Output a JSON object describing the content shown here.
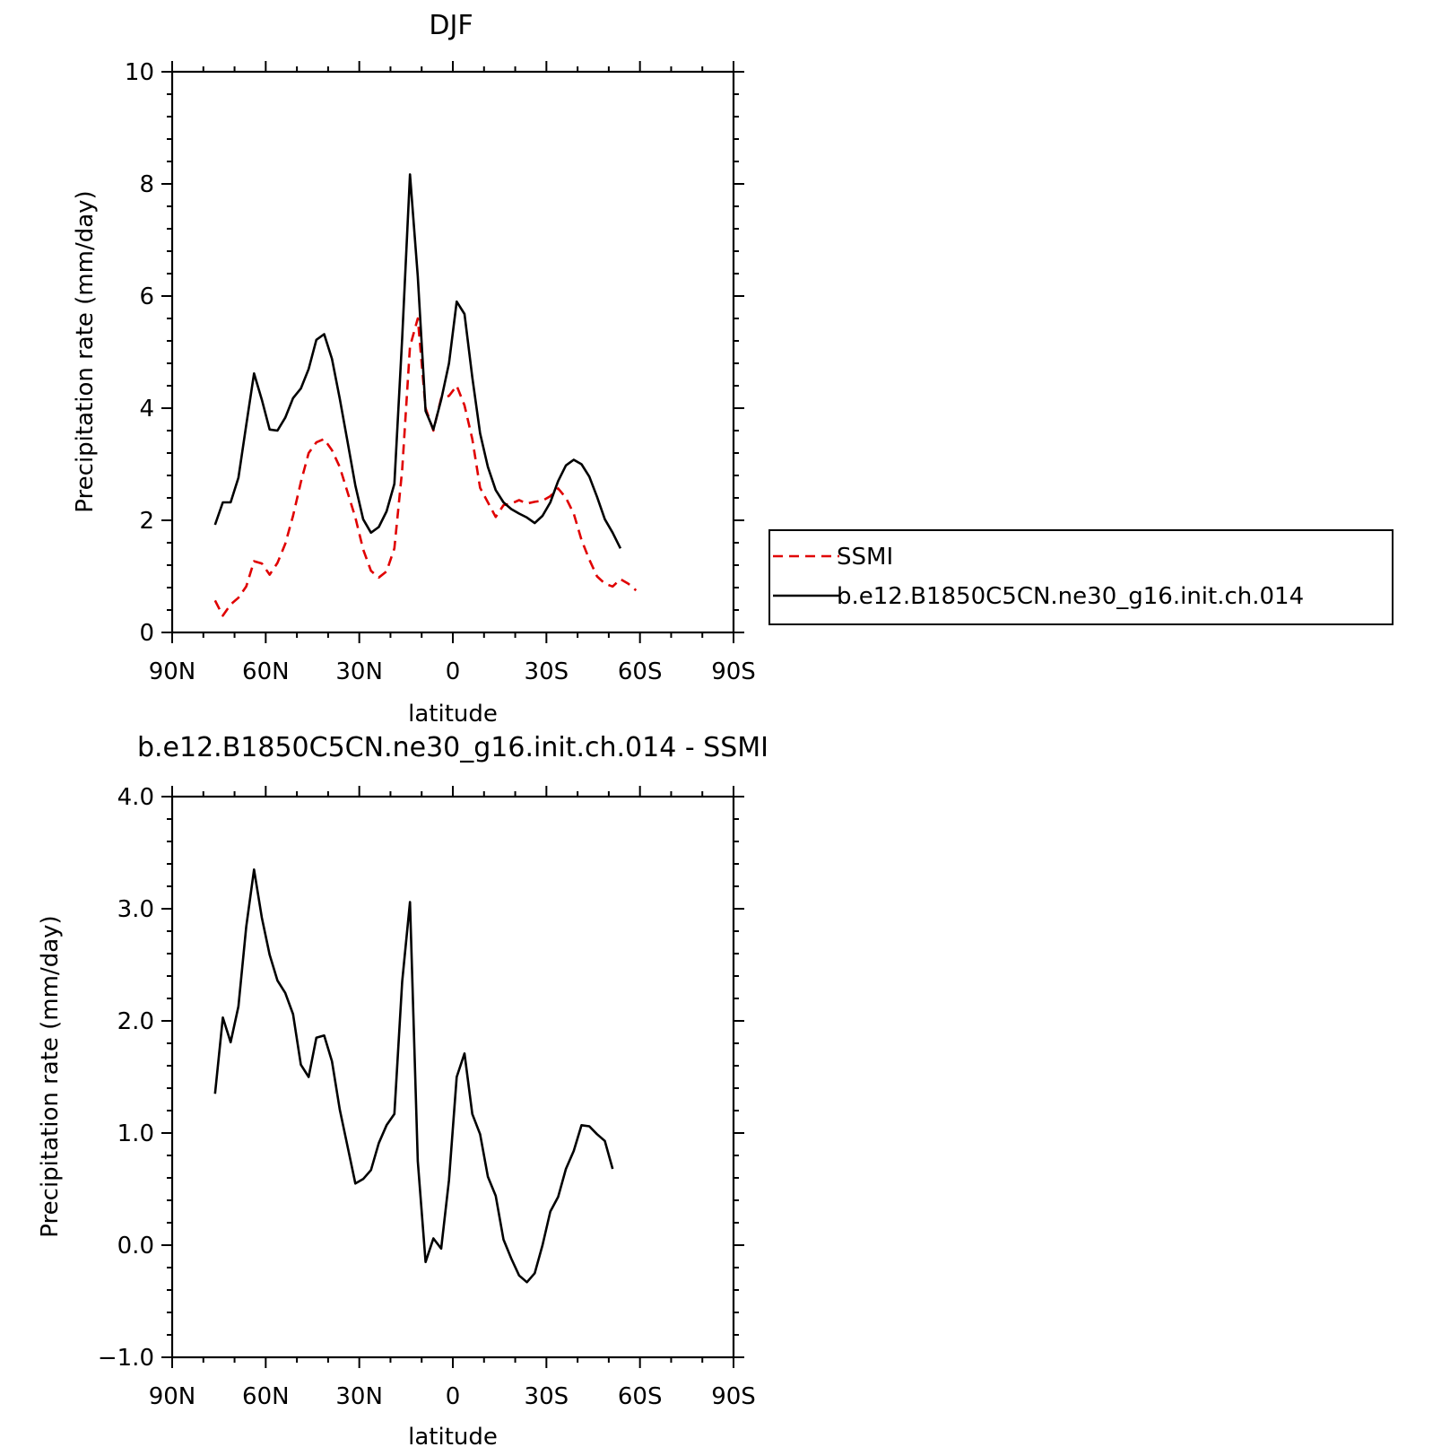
{
  "chart_data": [
    {
      "type": "line",
      "title": "DJF",
      "xlabel": "latitude",
      "ylabel": "Precipitation rate (mm/day)",
      "xlim": [
        90,
        -90
      ],
      "ylim": [
        0,
        10
      ],
      "x_ticks": [
        {
          "value": 90,
          "label": "90N"
        },
        {
          "value": 60,
          "label": "60N"
        },
        {
          "value": 30,
          "label": "30N"
        },
        {
          "value": 0,
          "label": "0"
        },
        {
          "value": -30,
          "label": "30S"
        },
        {
          "value": -60,
          "label": "60S"
        },
        {
          "value": -90,
          "label": "90S"
        }
      ],
      "y_ticks": [
        {
          "value": 0,
          "label": "0"
        },
        {
          "value": 2,
          "label": "2"
        },
        {
          "value": 4,
          "label": "4"
        },
        {
          "value": 6,
          "label": "6"
        },
        {
          "value": 8,
          "label": "8"
        },
        {
          "value": 10,
          "label": "10"
        }
      ],
      "legend_position": "right",
      "series": [
        {
          "name": "SSMI",
          "color": "#e00000",
          "dash": "dashed",
          "x": [
            76.25,
            73.75,
            71.25,
            68.75,
            66.25,
            63.75,
            61.25,
            58.75,
            56.25,
            53.75,
            51.25,
            48.75,
            46.25,
            43.75,
            41.25,
            38.75,
            36.25,
            33.75,
            31.25,
            28.75,
            26.25,
            23.75,
            21.25,
            18.75,
            16.25,
            13.75,
            11.25,
            8.75,
            6.25,
            3.75,
            1.25,
            -1.25,
            -3.75,
            -6.25,
            -8.75,
            -11.25,
            -13.75,
            -16.25,
            -18.75,
            -21.25,
            -23.75,
            -26.25,
            -28.75,
            -31.25,
            -33.75,
            -36.25,
            -38.75,
            -41.25,
            -43.75,
            -46.25,
            -48.75,
            -51.25,
            -53.75,
            -56.25,
            -58.75,
            -61.25,
            -63.75,
            -66.25,
            -68.75,
            -71.25,
            -73.75
          ],
          "y": [
            0.57,
            0.3,
            0.5,
            0.62,
            0.82,
            1.27,
            1.23,
            1.03,
            1.24,
            1.58,
            2.08,
            2.68,
            3.2,
            3.39,
            3.45,
            3.25,
            2.95,
            2.5,
            2.05,
            1.48,
            1.1,
            0.98,
            1.09,
            1.5,
            2.9,
            5.1,
            5.6,
            4.0,
            3.6,
            4.18,
            4.22,
            4.4,
            4.05,
            3.45,
            2.58,
            2.32,
            2.06,
            2.27,
            2.3,
            2.36,
            2.3,
            2.33,
            2.35,
            2.43,
            2.57,
            2.4,
            2.12,
            1.65,
            1.3,
            1.0,
            0.87,
            0.82,
            0.95,
            0.87,
            0.75,
            null,
            null,
            null,
            null,
            null,
            null
          ]
        },
        {
          "name": "b.e12.B1850C5CN.ne30_g16.init.ch.014",
          "color": "#000000",
          "dash": "solid",
          "x": [
            76.25,
            73.75,
            71.25,
            68.75,
            66.25,
            63.75,
            61.25,
            58.75,
            56.25,
            53.75,
            51.25,
            48.75,
            46.25,
            43.75,
            41.25,
            38.75,
            36.25,
            33.75,
            31.25,
            28.75,
            26.25,
            23.75,
            21.25,
            18.75,
            16.25,
            13.75,
            11.25,
            8.75,
            6.25,
            3.75,
            1.25,
            -1.25,
            -3.75,
            -6.25,
            -8.75,
            -11.25,
            -13.75,
            -16.25,
            -18.75,
            -21.25,
            -23.75,
            -26.25,
            -28.75,
            -31.25,
            -33.75,
            -36.25,
            -38.75,
            -41.25,
            -43.75,
            -46.25,
            -48.75,
            -51.25,
            -53.75,
            -56.25,
            -58.75,
            -61.25,
            -63.75,
            -66.25
          ],
          "y": [
            1.92,
            2.32,
            2.32,
            2.76,
            3.7,
            4.62,
            4.15,
            3.62,
            3.6,
            3.83,
            4.18,
            4.35,
            4.7,
            5.22,
            5.32,
            4.88,
            4.17,
            3.4,
            2.62,
            2.02,
            1.78,
            1.88,
            2.16,
            2.65,
            5.25,
            8.17,
            6.35,
            3.95,
            3.62,
            4.15,
            4.8,
            5.9,
            5.68,
            4.55,
            3.55,
            2.95,
            2.54,
            2.32,
            2.2,
            2.12,
            2.05,
            1.95,
            2.08,
            2.32,
            2.7,
            2.98,
            3.08,
            3.0,
            2.78,
            2.42,
            2.02,
            1.78,
            1.5,
            null,
            null,
            null,
            null,
            null
          ]
        }
      ]
    },
    {
      "type": "line",
      "title": "b.e12.B1850C5CN.ne30_g16.init.ch.014 - SSMI",
      "xlabel": "latitude",
      "ylabel": "Precipitation rate (mm/day)",
      "xlim": [
        90,
        -90
      ],
      "ylim": [
        -1.0,
        4.0
      ],
      "x_ticks": [
        {
          "value": 90,
          "label": "90N"
        },
        {
          "value": 60,
          "label": "60N"
        },
        {
          "value": 30,
          "label": "30N"
        },
        {
          "value": 0,
          "label": "0"
        },
        {
          "value": -30,
          "label": "30S"
        },
        {
          "value": -60,
          "label": "60S"
        },
        {
          "value": -90,
          "label": "90S"
        }
      ],
      "y_ticks": [
        {
          "value": -1.0,
          "label": "−1.0"
        },
        {
          "value": 0.0,
          "label": "0.0"
        },
        {
          "value": 1.0,
          "label": "1.0"
        },
        {
          "value": 2.0,
          "label": "2.0"
        },
        {
          "value": 3.0,
          "label": "3.0"
        },
        {
          "value": 4.0,
          "label": "4.0"
        }
      ],
      "series": [
        {
          "color": "#000000",
          "dash": "solid",
          "x": [
            76.25,
            73.75,
            71.25,
            68.75,
            66.25,
            63.75,
            61.25,
            58.75,
            56.25,
            53.75,
            51.25,
            48.75,
            46.25,
            43.75,
            41.25,
            38.75,
            36.25,
            33.75,
            31.25,
            28.75,
            26.25,
            23.75,
            21.25,
            18.75,
            16.25,
            13.75,
            11.25,
            8.75,
            6.25,
            3.75,
            1.25,
            -1.25,
            -3.75,
            -6.25,
            -8.75,
            -11.25,
            -13.75,
            -16.25,
            -18.75,
            -21.25,
            -23.75,
            -26.25,
            -28.75,
            -31.25,
            -33.75,
            -36.25,
            -38.75,
            -41.25,
            -43.75,
            -46.25,
            -48.75,
            -51.25,
            -53.75
          ],
          "y": [
            1.35,
            2.03,
            1.81,
            2.13,
            2.84,
            3.35,
            2.92,
            2.59,
            2.36,
            2.25,
            2.06,
            1.61,
            1.5,
            1.85,
            1.87,
            1.64,
            1.21,
            0.88,
            0.55,
            0.59,
            0.67,
            0.91,
            1.07,
            1.17,
            2.35,
            3.06,
            0.75,
            -0.15,
            0.06,
            -0.03,
            0.58,
            1.5,
            1.71,
            1.17,
            0.99,
            0.61,
            0.44,
            0.05,
            -0.12,
            -0.27,
            -0.33,
            -0.25,
            0.0,
            0.3,
            0.43,
            0.68,
            0.84,
            1.07,
            1.06,
            0.99,
            0.93,
            0.68,
            null
          ]
        }
      ]
    }
  ]
}
